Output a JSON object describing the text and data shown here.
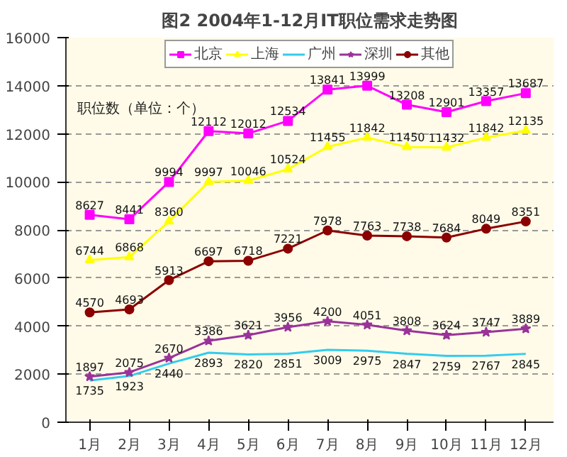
{
  "chart_data": {
    "type": "line",
    "title": "图2 2004年1-12月IT职位需求走势图",
    "annotations": [
      "职位数（单位：个）"
    ],
    "categories": [
      "1月",
      "2月",
      "3月",
      "4月",
      "5月",
      "6月",
      "7月",
      "8月",
      "9月",
      "10月",
      "11月",
      "12月"
    ],
    "series": [
      {
        "name": "北京",
        "color": "#ff00ff",
        "marker": "square",
        "values": [
          8627,
          8441,
          9994,
          12112,
          12012,
          12534,
          13841,
          13999,
          13208,
          12901,
          13357,
          13687
        ]
      },
      {
        "name": "上海",
        "color": "#ffff00",
        "marker": "triangle",
        "values": [
          6744,
          6868,
          8360,
          9997,
          10046,
          10524,
          11455,
          11842,
          11450,
          11432,
          11842,
          12135
        ]
      },
      {
        "name": "广州",
        "color": "#33ccee",
        "marker": "none",
        "values": [
          1735,
          1923,
          2440,
          2893,
          2820,
          2851,
          3009,
          2975,
          2847,
          2759,
          2767,
          2845
        ]
      },
      {
        "name": "深圳",
        "color": "#993399",
        "marker": "star",
        "values": [
          1897,
          2075,
          2670,
          3386,
          3621,
          3956,
          4200,
          4051,
          3808,
          3624,
          3747,
          3889
        ]
      },
      {
        "name": "其他",
        "color": "#8b0000",
        "marker": "circle",
        "values": [
          4570,
          4693,
          5913,
          6697,
          6718,
          7221,
          7978,
          7763,
          7738,
          7684,
          8049,
          8351
        ]
      }
    ],
    "ylim": [
      0,
      16000
    ],
    "yticks": [
      0,
      2000,
      4000,
      6000,
      8000,
      10000,
      12000,
      14000,
      16000
    ],
    "grid": "y",
    "legend": "top",
    "data_labels": true,
    "line_style": "solid"
  }
}
